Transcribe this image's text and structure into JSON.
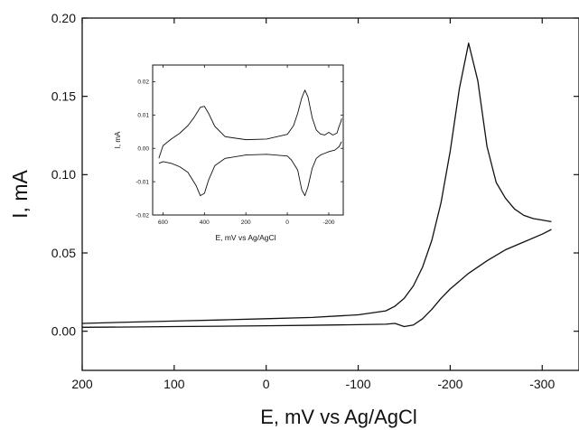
{
  "chart_data": [
    {
      "type": "line",
      "xlabel": "E, mV vs Ag/AgCl",
      "ylabel": "I, mA",
      "xlim": [
        200,
        -340
      ],
      "ylim": [
        -0.025,
        0.2
      ],
      "x_reversed": true,
      "xticks": [
        200,
        100,
        0,
        -100,
        -200,
        -300
      ],
      "xtick_labels": [
        "200",
        "100",
        "0",
        "-100",
        "-200",
        "-300"
      ],
      "yticks": [
        0.0,
        0.05,
        0.1,
        0.15,
        0.2
      ],
      "ytick_labels": [
        "0.00",
        "0.05",
        "0.10",
        "0.15",
        "0.20"
      ],
      "grid": false,
      "series": [
        {
          "values_x": [
            200,
            150,
            100,
            50,
            0,
            -50,
            -100,
            -130,
            -140,
            -150,
            -160,
            -170,
            -180,
            -190,
            -200,
            -210,
            -220,
            -230,
            -240,
            -250,
            -260,
            -270,
            -280,
            -290,
            -300,
            -310
          ],
          "values_y": [
            0.005,
            0.0058,
            0.0065,
            0.0072,
            0.008,
            0.0088,
            0.0105,
            0.013,
            0.016,
            0.021,
            0.029,
            0.041,
            0.058,
            0.082,
            0.115,
            0.155,
            0.184,
            0.16,
            0.118,
            0.095,
            0.085,
            0.078,
            0.074,
            0.072,
            0.071,
            0.07
          ]
        },
        {
          "values_x": [
            -310,
            -300,
            -280,
            -260,
            -240,
            -220,
            -200,
            -190,
            -180,
            -170,
            -160,
            -150,
            -140,
            -130,
            -100,
            -50,
            0,
            50,
            100,
            150,
            200
          ],
          "values_y": [
            0.065,
            0.062,
            0.057,
            0.052,
            0.045,
            0.037,
            0.027,
            0.021,
            0.014,
            0.008,
            0.004,
            0.003,
            0.005,
            0.0045,
            0.0042,
            0.0038,
            0.0035,
            0.0032,
            0.003,
            0.0027,
            0.0025
          ]
        }
      ]
    },
    {
      "type": "line",
      "xlabel": "E, mV vs Ag/AgCl",
      "ylabel": "I, mA",
      "xlim": [
        650,
        -270
      ],
      "ylim": [
        -0.02,
        0.025
      ],
      "x_reversed": true,
      "xticks": [
        600,
        400,
        200,
        0,
        -200
      ],
      "xtick_labels": [
        "600",
        "400",
        "200",
        "0",
        "-200"
      ],
      "yticks": [
        -0.02,
        -0.01,
        0.0,
        0.01,
        0.02
      ],
      "ytick_labels": [
        "-0.02",
        "-0.01",
        "0.00",
        "0.01",
        "0.02"
      ],
      "grid": false,
      "series": [
        {
          "values_x": [
            620,
            600,
            560,
            520,
            480,
            450,
            420,
            400,
            380,
            350,
            300,
            200,
            100,
            0,
            -30,
            -50,
            -70,
            -85,
            -100,
            -120,
            -140,
            -160,
            -180,
            -200,
            -220,
            -240,
            -250,
            -260,
            -262
          ],
          "values_y": [
            -0.003,
            0.0008,
            0.0028,
            0.0045,
            0.0068,
            0.0093,
            0.0123,
            0.0126,
            0.0105,
            0.0066,
            0.0035,
            0.0026,
            0.0028,
            0.0042,
            0.0068,
            0.0105,
            0.0152,
            0.0175,
            0.0154,
            0.0092,
            0.0055,
            0.0043,
            0.004,
            0.0048,
            0.004,
            0.0046,
            0.0066,
            0.0082,
            0.009
          ]
        },
        {
          "values_x": [
            -262,
            -250,
            -230,
            -200,
            -180,
            -160,
            -140,
            -120,
            -100,
            -85,
            -70,
            -50,
            -20,
            0,
            100,
            200,
            300,
            350,
            380,
            400,
            420,
            440,
            480,
            520,
            560,
            600,
            620
          ],
          "values_y": [
            0.002,
            0.0005,
            -0.0005,
            -0.001,
            -0.0015,
            -0.002,
            -0.003,
            -0.006,
            -0.0115,
            -0.0142,
            -0.0125,
            -0.0065,
            -0.0035,
            -0.0023,
            -0.0018,
            -0.002,
            -0.003,
            -0.0052,
            -0.0095,
            -0.0135,
            -0.0142,
            -0.0112,
            -0.0072,
            -0.0055,
            -0.0045,
            -0.004,
            -0.0045
          ]
        }
      ]
    }
  ]
}
